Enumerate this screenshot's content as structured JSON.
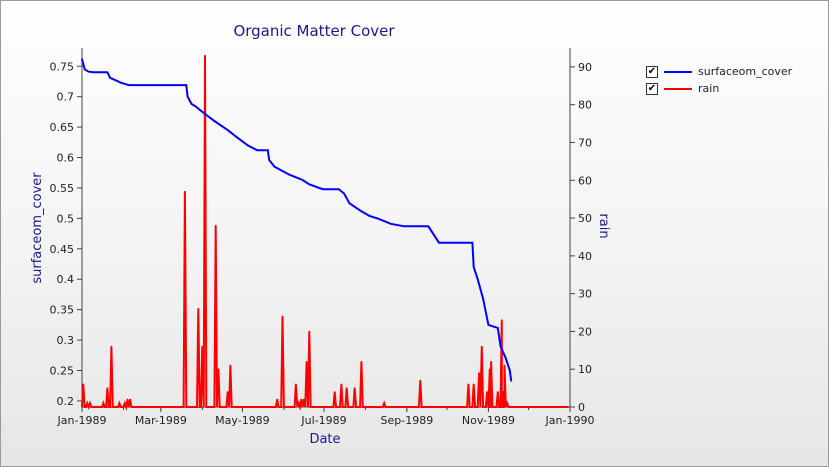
{
  "chart_data": {
    "type": "line",
    "title": "Organic Matter Cover",
    "xlabel": "Date",
    "ylabel_left": "surfaceom_cover",
    "ylabel_right": "rain",
    "xlim": [
      "1989-01-01",
      "1990-01-01"
    ],
    "ylim_left": [
      0.19,
      0.78
    ],
    "ylim_right": [
      0,
      95
    ],
    "x_ticks": [
      "Jan-1989",
      "Mar-1989",
      "May-1989",
      "Jul-1989",
      "Sep-1989",
      "Nov-1989",
      "Jan-1990"
    ],
    "y_ticks_left": [
      "0.2",
      "0.25",
      "0.3",
      "0.35",
      "0.4",
      "0.45",
      "0.5",
      "0.55",
      "0.6",
      "0.65",
      "0.7",
      "0.75"
    ],
    "y_ticks_right": [
      "0",
      "10",
      "20",
      "30",
      "40",
      "50",
      "60",
      "70",
      "80",
      "90"
    ],
    "legend_position": "top-right",
    "grid": false,
    "series": [
      {
        "name": "surfaceom_cover",
        "axis": "left",
        "color": "#0000ff",
        "x": [
          "1989-01-01",
          "1989-01-03",
          "1989-01-06",
          "1989-01-10",
          "1989-01-20",
          "1989-01-22",
          "1989-01-26",
          "1989-01-30",
          "1989-02-05",
          "1989-02-15",
          "1989-02-25",
          "1989-03-05",
          "1989-03-15",
          "1989-03-20",
          "1989-03-21",
          "1989-03-24",
          "1989-03-27",
          "1989-04-01",
          "1989-04-10",
          "1989-04-20",
          "1989-04-27",
          "1989-05-05",
          "1989-05-12",
          "1989-05-20",
          "1989-05-21",
          "1989-05-25",
          "1989-06-05",
          "1989-06-15",
          "1989-06-20",
          "1989-06-30",
          "1989-07-05",
          "1989-07-08",
          "1989-07-12",
          "1989-07-16",
          "1989-07-20",
          "1989-07-28",
          "1989-08-04",
          "1989-08-10",
          "1989-08-20",
          "1989-08-30",
          "1989-09-10",
          "1989-09-12",
          "1989-09-17",
          "1989-09-25",
          "1989-10-10",
          "1989-10-20",
          "1989-10-21",
          "1989-10-24",
          "1989-10-28",
          "1989-11-01",
          "1989-11-05",
          "1989-11-08",
          "1989-11-10",
          "1989-11-14",
          "1989-11-17",
          "1989-11-18"
        ],
        "values": [
          0.762,
          0.745,
          0.741,
          0.74,
          0.74,
          0.731,
          0.727,
          0.723,
          0.719,
          0.719,
          0.719,
          0.719,
          0.719,
          0.719,
          0.7,
          0.688,
          0.684,
          0.675,
          0.66,
          0.645,
          0.633,
          0.62,
          0.612,
          0.612,
          0.596,
          0.585,
          0.572,
          0.563,
          0.556,
          0.548,
          0.548,
          0.548,
          0.548,
          0.541,
          0.525,
          0.513,
          0.504,
          0.5,
          0.491,
          0.487,
          0.487,
          0.487,
          0.487,
          0.46,
          0.46,
          0.46,
          0.42,
          0.4,
          0.368,
          0.325,
          0.322,
          0.32,
          0.29,
          0.27,
          0.25,
          0.233
        ]
      },
      {
        "name": "rain",
        "axis": "right",
        "color": "#ff0000",
        "x": [
          "1989-01-02",
          "1989-01-05",
          "1989-01-07",
          "1989-01-17",
          "1989-01-20",
          "1989-01-23",
          "1989-01-29",
          "1989-02-02",
          "1989-02-04",
          "1989-02-06",
          "1989-03-19",
          "1989-03-29",
          "1989-04-01",
          "1989-04-03",
          "1989-04-11",
          "1989-04-13",
          "1989-04-20",
          "1989-04-22",
          "1989-05-27",
          "1989-05-31",
          "1989-06-10",
          "1989-06-12",
          "1989-06-14",
          "1989-06-16",
          "1989-06-18",
          "1989-06-20",
          "1989-07-09",
          "1989-07-14",
          "1989-07-18",
          "1989-07-24",
          "1989-07-29",
          "1989-08-15",
          "1989-09-11",
          "1989-10-17",
          "1989-10-21",
          "1989-10-25",
          "1989-10-27",
          "1989-10-31",
          "1989-11-02",
          "1989-11-03",
          "1989-11-08",
          "1989-11-11",
          "1989-11-12",
          "1989-11-13",
          "1989-11-15"
        ],
        "values": [
          6,
          1,
          1,
          1,
          5,
          16,
          1,
          1,
          2,
          2,
          57,
          26,
          16,
          93,
          48,
          10,
          4,
          11,
          2,
          24,
          6,
          1,
          2,
          2,
          12,
          20,
          4,
          6,
          5,
          5,
          12,
          1,
          7,
          6,
          6,
          9,
          16,
          4,
          10,
          12,
          4,
          23,
          4,
          11,
          1
        ]
      }
    ]
  }
}
